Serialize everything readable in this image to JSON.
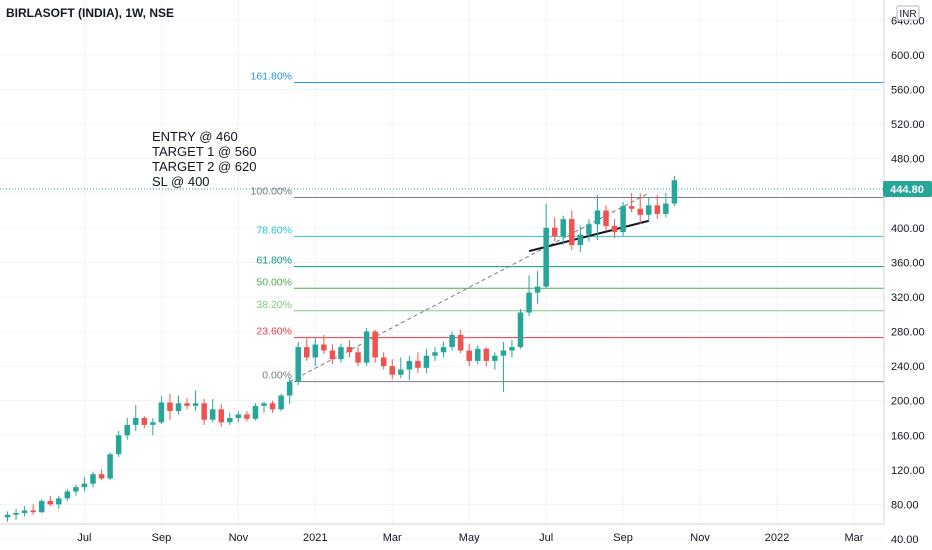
{
  "chart_data": {
    "type": "candlestick",
    "title": "BIRLASOFT (INDIA), 1W, NSE",
    "currency": "INR",
    "last_price": "444.80",
    "ylim": [
      40,
      660
    ],
    "y_ticks": [
      "640.00",
      "600.00",
      "560.00",
      "520.00",
      "480.00",
      "440.00",
      "400.00",
      "360.00",
      "320.00",
      "280.00",
      "240.00",
      "200.00",
      "160.00",
      "120.00",
      "80.00",
      "40.00"
    ],
    "x_ticks": [
      {
        "label": "Jul",
        "week": 9
      },
      {
        "label": "Sep",
        "week": 18
      },
      {
        "label": "Nov",
        "week": 27
      },
      {
        "label": "2021",
        "week": 36
      },
      {
        "label": "Mar",
        "week": 45
      },
      {
        "label": "May",
        "week": 54
      },
      {
        "label": "Jul",
        "week": 63
      },
      {
        "label": "Sep",
        "week": 72
      },
      {
        "label": "Nov",
        "week": 81
      },
      {
        "label": "2022",
        "week": 90
      },
      {
        "label": "Mar",
        "week": 99
      }
    ],
    "notes": [
      "ENTRY @ 460",
      "TARGET 1 @ 560",
      "TARGET 2 @ 620",
      "SL @ 400"
    ],
    "fib_levels": [
      {
        "label": "161.80%",
        "value": 568,
        "color": "#2196f3"
      },
      {
        "label": "100.00%",
        "value": 435,
        "color": "#787b86"
      },
      {
        "label": "78.60%",
        "value": 390,
        "color": "#26c6da"
      },
      {
        "label": "61.80%",
        "value": 355,
        "color": "#089981"
      },
      {
        "label": "50.00%",
        "value": 330,
        "color": "#4caf50"
      },
      {
        "label": "38.20%",
        "value": 304,
        "color": "#81c784"
      },
      {
        "label": "23.60%",
        "value": 273,
        "color": "#f23645"
      },
      {
        "label": "0.00%",
        "value": 222,
        "color": "#787b86"
      }
    ],
    "colors": {
      "up": "#26a69a",
      "down": "#ef5350",
      "axis_text": "#131722",
      "grid": "#f0f3fa",
      "price_line": "#26a69a"
    },
    "trend_line": {
      "from_week": 61,
      "from_value": 373,
      "to_week": 75,
      "to_value": 408
    },
    "diagonal": {
      "from_week": 33,
      "from_value": 222,
      "to_week": 75,
      "to_value": 440
    },
    "candles": [
      {
        "o": 65,
        "h": 72,
        "l": 60,
        "c": 68
      },
      {
        "o": 68,
        "h": 75,
        "l": 62,
        "c": 70
      },
      {
        "o": 70,
        "h": 78,
        "l": 66,
        "c": 73
      },
      {
        "o": 73,
        "h": 80,
        "l": 68,
        "c": 71
      },
      {
        "o": 71,
        "h": 86,
        "l": 70,
        "c": 84
      },
      {
        "o": 84,
        "h": 90,
        "l": 78,
        "c": 80
      },
      {
        "o": 80,
        "h": 90,
        "l": 75,
        "c": 87
      },
      {
        "o": 87,
        "h": 98,
        "l": 84,
        "c": 95
      },
      {
        "o": 95,
        "h": 103,
        "l": 90,
        "c": 100
      },
      {
        "o": 100,
        "h": 112,
        "l": 95,
        "c": 104
      },
      {
        "o": 104,
        "h": 118,
        "l": 100,
        "c": 115
      },
      {
        "o": 115,
        "h": 120,
        "l": 108,
        "c": 110
      },
      {
        "o": 110,
        "h": 140,
        "l": 108,
        "c": 138
      },
      {
        "o": 138,
        "h": 165,
        "l": 135,
        "c": 160
      },
      {
        "o": 160,
        "h": 180,
        "l": 155,
        "c": 172
      },
      {
        "o": 172,
        "h": 195,
        "l": 165,
        "c": 180
      },
      {
        "o": 180,
        "h": 182,
        "l": 168,
        "c": 172
      },
      {
        "o": 172,
        "h": 180,
        "l": 160,
        "c": 175
      },
      {
        "o": 175,
        "h": 205,
        "l": 173,
        "c": 198
      },
      {
        "o": 198,
        "h": 208,
        "l": 178,
        "c": 188
      },
      {
        "o": 188,
        "h": 206,
        "l": 184,
        "c": 197
      },
      {
        "o": 197,
        "h": 203,
        "l": 190,
        "c": 194
      },
      {
        "o": 194,
        "h": 212,
        "l": 188,
        "c": 197
      },
      {
        "o": 197,
        "h": 202,
        "l": 172,
        "c": 178
      },
      {
        "o": 178,
        "h": 202,
        "l": 175,
        "c": 190
      },
      {
        "o": 190,
        "h": 196,
        "l": 170,
        "c": 175
      },
      {
        "o": 175,
        "h": 186,
        "l": 172,
        "c": 180
      },
      {
        "o": 180,
        "h": 188,
        "l": 175,
        "c": 184
      },
      {
        "o": 184,
        "h": 188,
        "l": 176,
        "c": 179
      },
      {
        "o": 179,
        "h": 197,
        "l": 177,
        "c": 194
      },
      {
        "o": 194,
        "h": 199,
        "l": 186,
        "c": 197
      },
      {
        "o": 197,
        "h": 200,
        "l": 186,
        "c": 190
      },
      {
        "o": 190,
        "h": 208,
        "l": 188,
        "c": 206
      },
      {
        "o": 206,
        "h": 226,
        "l": 196,
        "c": 222
      },
      {
        "o": 222,
        "h": 268,
        "l": 218,
        "c": 262
      },
      {
        "o": 262,
        "h": 272,
        "l": 246,
        "c": 250
      },
      {
        "o": 250,
        "h": 272,
        "l": 240,
        "c": 265
      },
      {
        "o": 265,
        "h": 276,
        "l": 254,
        "c": 258
      },
      {
        "o": 258,
        "h": 265,
        "l": 242,
        "c": 248
      },
      {
        "o": 248,
        "h": 266,
        "l": 244,
        "c": 262
      },
      {
        "o": 262,
        "h": 270,
        "l": 250,
        "c": 256
      },
      {
        "o": 256,
        "h": 262,
        "l": 240,
        "c": 244
      },
      {
        "o": 244,
        "h": 284,
        "l": 240,
        "c": 280
      },
      {
        "o": 280,
        "h": 282,
        "l": 244,
        "c": 250
      },
      {
        "o": 250,
        "h": 256,
        "l": 236,
        "c": 240
      },
      {
        "o": 240,
        "h": 248,
        "l": 225,
        "c": 230
      },
      {
        "o": 230,
        "h": 250,
        "l": 226,
        "c": 236
      },
      {
        "o": 236,
        "h": 252,
        "l": 224,
        "c": 246
      },
      {
        "o": 246,
        "h": 256,
        "l": 232,
        "c": 238
      },
      {
        "o": 238,
        "h": 260,
        "l": 232,
        "c": 252
      },
      {
        "o": 252,
        "h": 262,
        "l": 246,
        "c": 256
      },
      {
        "o": 256,
        "h": 268,
        "l": 250,
        "c": 262
      },
      {
        "o": 262,
        "h": 280,
        "l": 258,
        "c": 276
      },
      {
        "o": 276,
        "h": 282,
        "l": 255,
        "c": 258
      },
      {
        "o": 258,
        "h": 266,
        "l": 240,
        "c": 246
      },
      {
        "o": 246,
        "h": 264,
        "l": 242,
        "c": 260
      },
      {
        "o": 260,
        "h": 262,
        "l": 240,
        "c": 246
      },
      {
        "o": 246,
        "h": 256,
        "l": 236,
        "c": 252
      },
      {
        "o": 252,
        "h": 268,
        "l": 210,
        "c": 258
      },
      {
        "o": 258,
        "h": 270,
        "l": 250,
        "c": 262
      },
      {
        "o": 262,
        "h": 306,
        "l": 260,
        "c": 302
      },
      {
        "o": 302,
        "h": 345,
        "l": 298,
        "c": 325
      },
      {
        "o": 325,
        "h": 350,
        "l": 312,
        "c": 332
      },
      {
        "o": 332,
        "h": 428,
        "l": 330,
        "c": 400
      },
      {
        "o": 400,
        "h": 412,
        "l": 384,
        "c": 390
      },
      {
        "o": 390,
        "h": 414,
        "l": 380,
        "c": 410
      },
      {
        "o": 410,
        "h": 420,
        "l": 374,
        "c": 380
      },
      {
        "o": 380,
        "h": 402,
        "l": 372,
        "c": 392
      },
      {
        "o": 392,
        "h": 410,
        "l": 384,
        "c": 404
      },
      {
        "o": 404,
        "h": 438,
        "l": 386,
        "c": 420
      },
      {
        "o": 420,
        "h": 426,
        "l": 396,
        "c": 402
      },
      {
        "o": 402,
        "h": 410,
        "l": 388,
        "c": 395
      },
      {
        "o": 395,
        "h": 430,
        "l": 390,
        "c": 425
      },
      {
        "o": 425,
        "h": 440,
        "l": 418,
        "c": 422
      },
      {
        "o": 422,
        "h": 440,
        "l": 404,
        "c": 415
      },
      {
        "o": 415,
        "h": 435,
        "l": 408,
        "c": 426
      },
      {
        "o": 426,
        "h": 438,
        "l": 410,
        "c": 416
      },
      {
        "o": 416,
        "h": 440,
        "l": 412,
        "c": 428
      },
      {
        "o": 428,
        "h": 460,
        "l": 425,
        "c": 455
      }
    ]
  }
}
